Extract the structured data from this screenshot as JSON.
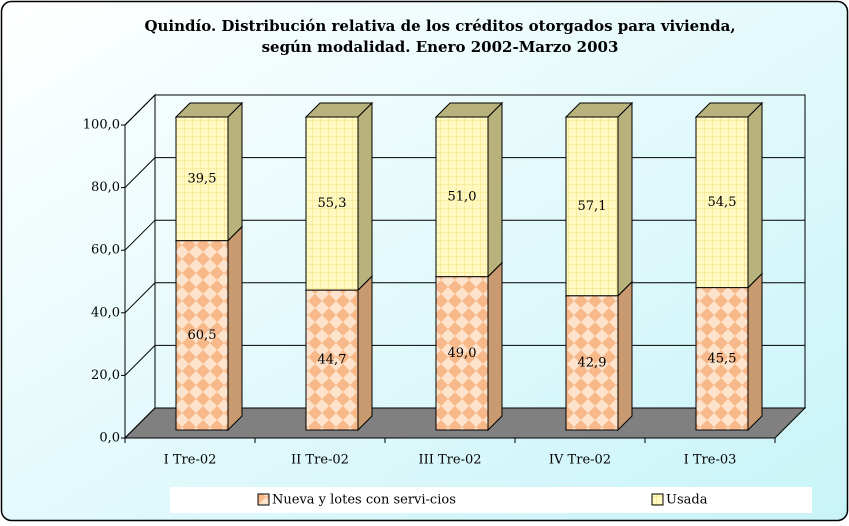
{
  "chart_data": {
    "type": "bar",
    "stacked": true,
    "three_d": true,
    "title": [
      "Quindío. Distribución relativa de los créditos otorgados para vivienda,",
      "según modalidad. Enero 2002-Marzo 2003"
    ],
    "categories": [
      "I Tre-02",
      "II Tre-02",
      "III Tre-02",
      "IV Tre-02",
      "I Tre-03"
    ],
    "series": [
      {
        "name": "Nueva y lotes con servi-cios",
        "color": "#f9c9a0",
        "values": [
          60.5,
          44.7,
          49.0,
          42.9,
          45.5
        ],
        "value_labels": [
          "60,5",
          "44,7",
          "49,0",
          "42,9",
          "45,5"
        ]
      },
      {
        "name": "Usada",
        "color": "#fff6b0",
        "values": [
          39.5,
          55.3,
          51.0,
          57.1,
          54.5
        ],
        "value_labels": [
          "39,5",
          "55,3",
          "51,0",
          "57,1",
          "54,5"
        ]
      }
    ],
    "ylim": [
      0,
      100
    ],
    "yticks": [
      {
        "value": 0,
        "label": "0,0"
      },
      {
        "value": 20,
        "label": "20,0"
      },
      {
        "value": 40,
        "label": "40,0"
      },
      {
        "value": 60,
        "label": "60,0"
      },
      {
        "value": 80,
        "label": "80,0"
      },
      {
        "value": 100,
        "label": "100,0"
      }
    ],
    "grid": true,
    "legend": "bottom"
  }
}
